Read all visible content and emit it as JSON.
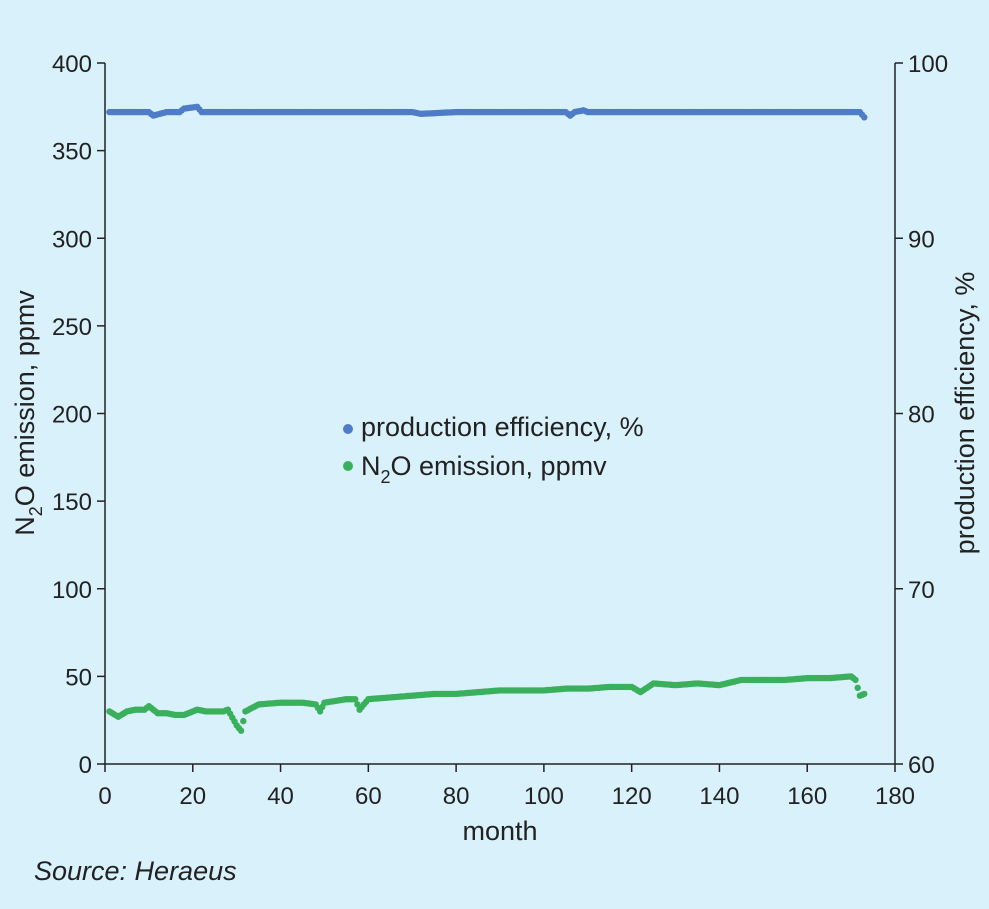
{
  "source_note": "Source: Heraeus",
  "colors": {
    "background": "#d9f1fa",
    "axis": "#222222",
    "efficiency": "#4f7cc6",
    "n2o": "#3bb05c"
  },
  "chart_data": {
    "type": "scatter",
    "xlabel": "month",
    "ylabel_left": "N2O emission, ppmv",
    "ylabel_left_parts": [
      "N",
      "2",
      "O emission, ppmv"
    ],
    "ylabel_right": "production efficiency, %",
    "xlim": [
      0,
      180
    ],
    "ylim_left": [
      0,
      400
    ],
    "ylim_right": [
      60,
      100
    ],
    "x_ticks": [
      "0",
      "20",
      "40",
      "60",
      "80",
      "100",
      "120",
      "140",
      "160",
      "180"
    ],
    "y_left_ticks": [
      "0",
      "50",
      "100",
      "150",
      "200",
      "250",
      "300",
      "350",
      "400"
    ],
    "y_right_ticks": [
      "60",
      "70",
      "80",
      "90",
      "100"
    ],
    "grid": false,
    "legend_placement": "center",
    "legend": {
      "efficiency": "production efficiency, %",
      "n2o_parts": [
        "N",
        "2",
        "O emission, ppmv"
      ]
    },
    "series": [
      {
        "name": "production efficiency, %",
        "axis": "right",
        "color": "#4f7cc6",
        "x": [
          1,
          5,
          10,
          11,
          14,
          17,
          18,
          21,
          22,
          25,
          30,
          40,
          50,
          60,
          70,
          72,
          80,
          90,
          100,
          105,
          106,
          107,
          109,
          110,
          115,
          120,
          130,
          140,
          150,
          160,
          170,
          171,
          172,
          173
        ],
        "y": [
          97.2,
          97.2,
          97.2,
          97.0,
          97.2,
          97.2,
          97.4,
          97.5,
          97.2,
          97.2,
          97.2,
          97.2,
          97.2,
          97.2,
          97.2,
          97.1,
          97.2,
          97.2,
          97.2,
          97.2,
          97.0,
          97.2,
          97.3,
          97.2,
          97.2,
          97.2,
          97.2,
          97.2,
          97.2,
          97.2,
          97.2,
          97.2,
          97.2,
          96.9
        ]
      },
      {
        "name": "N2O emission, ppmv",
        "axis": "left",
        "color": "#3bb05c",
        "x": [
          1,
          3,
          5,
          7,
          9,
          10,
          12,
          14,
          16,
          18,
          20,
          21,
          23,
          25,
          27,
          28,
          30,
          31,
          32,
          35,
          40,
          45,
          48,
          49,
          50,
          55,
          57,
          58,
          60,
          65,
          70,
          75,
          80,
          85,
          90,
          95,
          100,
          105,
          110,
          115,
          120,
          122,
          125,
          130,
          135,
          140,
          145,
          150,
          155,
          160,
          165,
          170,
          171,
          172,
          173
        ],
        "y": [
          30,
          27,
          30,
          31,
          31,
          33,
          29,
          29,
          28,
          28,
          30,
          31,
          30,
          30,
          30,
          31,
          22,
          19,
          30,
          34,
          35,
          35,
          34,
          30,
          35,
          37,
          37,
          31,
          37,
          38,
          39,
          40,
          40,
          41,
          42,
          42,
          42,
          43,
          43,
          44,
          44,
          41,
          46,
          45,
          46,
          45,
          48,
          48,
          48,
          49,
          49,
          50,
          48,
          39,
          40
        ]
      }
    ]
  }
}
